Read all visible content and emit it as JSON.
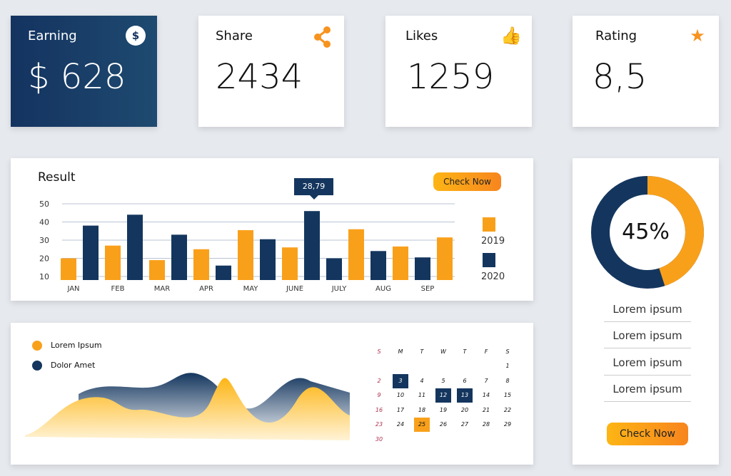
{
  "stats": [
    {
      "label": "Earning",
      "value": "$ 628",
      "icon": "dollar-icon"
    },
    {
      "label": "Share",
      "value": "2434",
      "icon": "share-icon"
    },
    {
      "label": "Likes",
      "value": "1259",
      "icon": "thumbs-up-icon"
    },
    {
      "label": "Rating",
      "value": "8,5",
      "icon": "star-icon"
    }
  ],
  "result": {
    "title": "Result",
    "button": "Check Now",
    "tooltip": "28,79"
  },
  "chart_data": {
    "type": "bar",
    "title": "Result",
    "categories": [
      "JAN",
      "FEB",
      "MAR",
      "APR",
      "MAY",
      "JUNE",
      "JULY",
      "AUG",
      "SEP"
    ],
    "yticks": [
      10,
      20,
      30,
      40,
      50
    ],
    "ylim": [
      8,
      50
    ],
    "grid": true,
    "legend": "right",
    "series": [
      {
        "name": "2019",
        "color": "#f9a01b",
        "values": [
          20,
          27,
          19,
          25,
          35.5,
          26,
          36,
          26.5,
          31.5
        ]
      },
      {
        "name": "2020",
        "color": "#14365e",
        "values": [
          38,
          44,
          33,
          16,
          30.5,
          46,
          20,
          24,
          20.5
        ]
      }
    ]
  },
  "donut": {
    "value": "45%",
    "percent": 45,
    "items": [
      "Lorem ipsum",
      "Lorem ipsum",
      "Lorem ipsum",
      "Lorem ipsum"
    ],
    "button": "Check Now"
  },
  "area": {
    "legend": [
      "Lorem Ipsum",
      "Dolor Amet"
    ]
  },
  "calendar": {
    "days": [
      "S",
      "M",
      "T",
      "W",
      "T",
      "F",
      "S"
    ],
    "highlight_dark": [
      3,
      12,
      13
    ],
    "highlight_orange": [
      25
    ]
  },
  "colors": {
    "accent": "#f9a01b",
    "navy": "#14365e"
  }
}
